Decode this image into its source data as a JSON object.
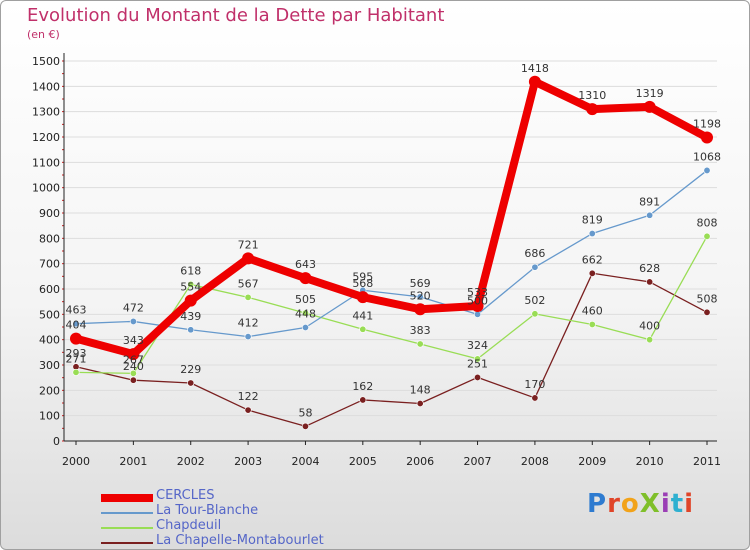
{
  "title": "Evolution du Montant de la Dette par Habitant",
  "subtitle": "(en €)",
  "logo": "ProXiti",
  "chart_data": {
    "type": "line",
    "categories": [
      "2000",
      "2001",
      "2002",
      "2003",
      "2004",
      "2005",
      "2006",
      "2007",
      "2008",
      "2009",
      "2010",
      "2011"
    ],
    "ylim": [
      0,
      1500
    ],
    "yticks": [
      0,
      100,
      200,
      300,
      400,
      500,
      600,
      700,
      800,
      900,
      1000,
      1100,
      1200,
      1300,
      1400,
      1500
    ],
    "grid": "horizontal",
    "legend_position": "bottom-left",
    "series": [
      {
        "name": "CERCLES",
        "color": "#ee0000",
        "values": [
          404,
          343,
          554,
          721,
          643,
          568,
          520,
          533,
          1418,
          1310,
          1319,
          1198
        ]
      },
      {
        "name": "La Tour-Blanche",
        "color": "#6699cc",
        "values": [
          463,
          472,
          439,
          412,
          448,
          595,
          569,
          500,
          686,
          819,
          891,
          1068
        ]
      },
      {
        "name": "Chapdeuil",
        "color": "#99dd55",
        "values": [
          271,
          267,
          618,
          567,
          505,
          441,
          383,
          324,
          502,
          460,
          400,
          808
        ]
      },
      {
        "name": "La Chapelle-Montabourlet",
        "color": "#7a2020",
        "values": [
          293,
          240,
          229,
          122,
          58,
          162,
          148,
          251,
          170,
          662,
          628,
          508
        ]
      }
    ]
  }
}
